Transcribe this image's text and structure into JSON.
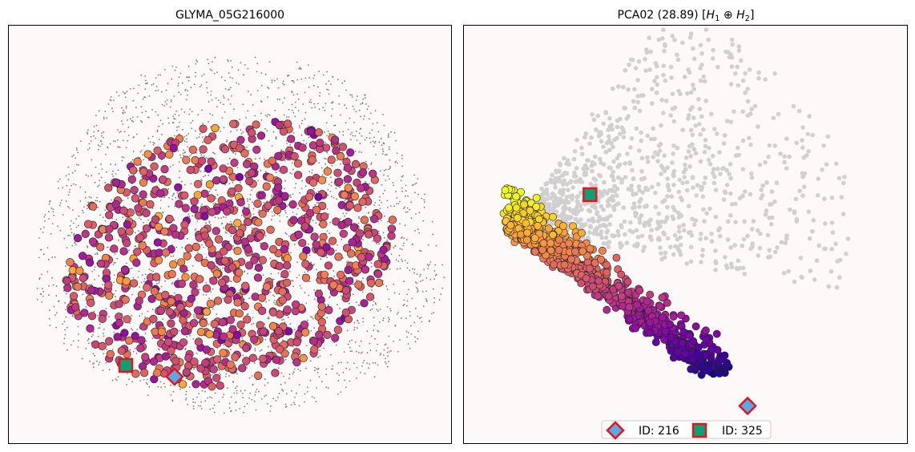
{
  "colors": {
    "background": "#fdf9f8",
    "spot_grey": "#7a7a7a",
    "scatter_grey": "#d0d0d0",
    "marker_diamond": "#5aa9e6",
    "marker_square": "#109e78",
    "marker_edge": "#e8121a",
    "colormap": "plasma"
  },
  "chart_data": [
    {
      "type": "scatter",
      "title": "GLYMA_05G216000",
      "xlabel": "",
      "ylabel": "",
      "grid": false,
      "description_of_series": "spatial spots colored by expression; grey tissue background points",
      "highlighted": [
        {
          "label": "ID: 216",
          "shape": "diamond",
          "x": 0.375,
          "y": 0.16
        },
        {
          "label": "ID: 325",
          "shape": "square",
          "x": 0.265,
          "y": 0.187
        }
      ]
    },
    {
      "type": "scatter",
      "title": "PCA02 (28.89) [H₁ ⊕ H₂]",
      "title_parts": {
        "prefix": "PCA02 (28.89) [",
        "h1": "H",
        "sub1": "1",
        "op": " ⊕ ",
        "h2": "H",
        "sub2": "2",
        "suffix": "]"
      },
      "xlabel": "",
      "ylabel": "",
      "grid": false,
      "highlighted": [
        {
          "label": "ID: 216",
          "shape": "diamond",
          "x": 0.64,
          "y": 0.09
        },
        {
          "label": "ID: 325",
          "shape": "square",
          "x": 0.285,
          "y": 0.595
        }
      ],
      "legend": {
        "placement": "lower-center",
        "entries": [
          {
            "marker": "diamond",
            "label": "ID: 216"
          },
          {
            "marker": "square",
            "label": "ID: 325"
          }
        ]
      }
    }
  ]
}
